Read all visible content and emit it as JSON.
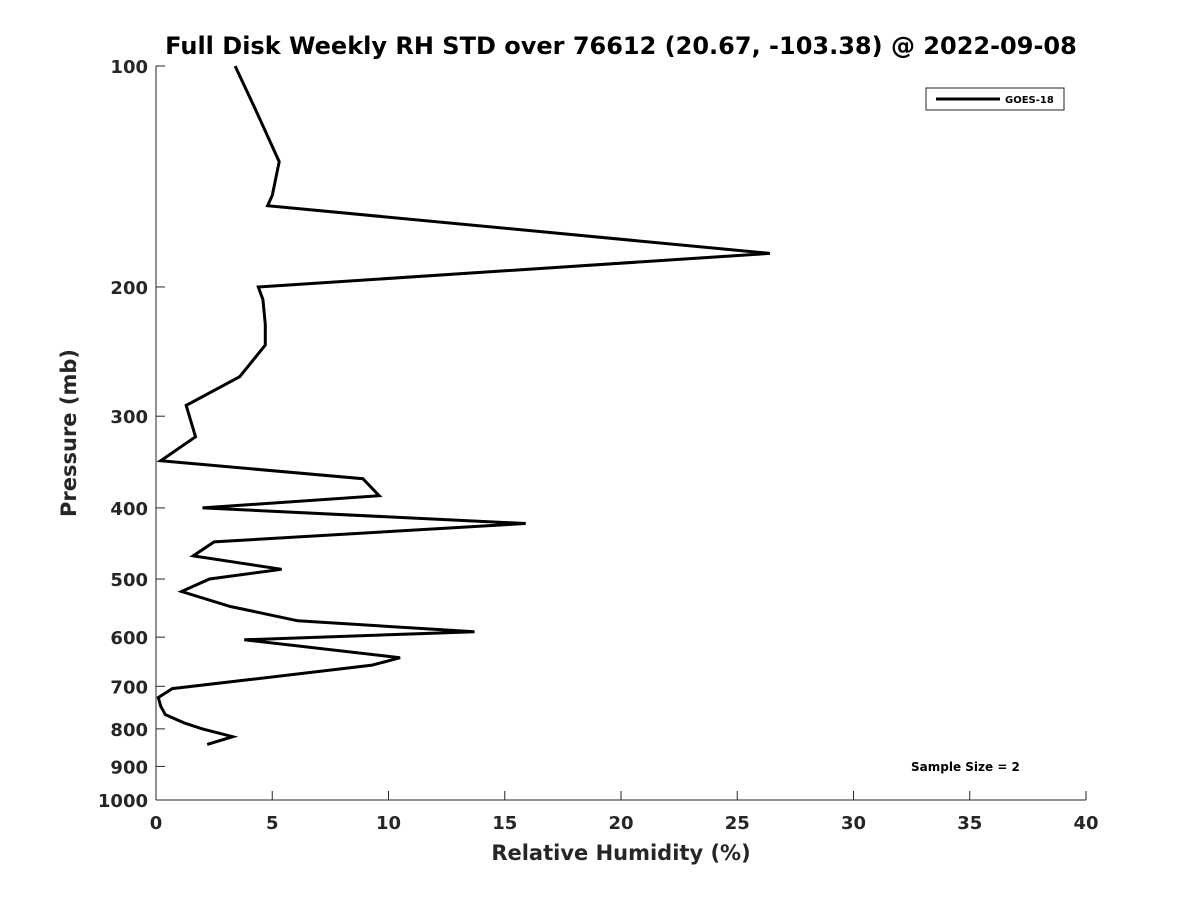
{
  "chart_data": {
    "type": "line",
    "title": "Full Disk Weekly RH STD over 76612 (20.67, -103.38) @ 2022-09-08",
    "xlabel": "Relative Humidity (%)",
    "ylabel": "Pressure (mb)",
    "xlim": [
      0,
      40
    ],
    "ylim": [
      100,
      1000
    ],
    "y_scale": "log",
    "y_reversed": true,
    "grid": false,
    "legend_position": "top-right",
    "x_ticks": [
      "0",
      "5",
      "10",
      "15",
      "20",
      "25",
      "30",
      "35",
      "40"
    ],
    "y_ticks": [
      "100",
      "200",
      "300",
      "400",
      "500",
      "600",
      "700",
      "800",
      "900",
      "1000"
    ],
    "annotation": "Sample Size = 2",
    "series": [
      {
        "name": "GOES-18",
        "color": "#000000",
        "points": [
          {
            "x": 3.4,
            "p": 100
          },
          {
            "x": 4.3,
            "p": 115
          },
          {
            "x": 5.3,
            "p": 135
          },
          {
            "x": 5.0,
            "p": 150
          },
          {
            "x": 4.8,
            "p": 155
          },
          {
            "x": 26.4,
            "p": 180
          },
          {
            "x": 4.4,
            "p": 200
          },
          {
            "x": 4.6,
            "p": 208
          },
          {
            "x": 4.7,
            "p": 225
          },
          {
            "x": 4.7,
            "p": 240
          },
          {
            "x": 3.6,
            "p": 265
          },
          {
            "x": 1.3,
            "p": 290
          },
          {
            "x": 1.7,
            "p": 320
          },
          {
            "x": 0.2,
            "p": 345
          },
          {
            "x": 8.9,
            "p": 365
          },
          {
            "x": 9.6,
            "p": 385
          },
          {
            "x": 2.0,
            "p": 400
          },
          {
            "x": 15.9,
            "p": 420
          },
          {
            "x": 2.5,
            "p": 445
          },
          {
            "x": 1.6,
            "p": 465
          },
          {
            "x": 5.4,
            "p": 485
          },
          {
            "x": 2.3,
            "p": 500
          },
          {
            "x": 1.1,
            "p": 520
          },
          {
            "x": 3.2,
            "p": 545
          },
          {
            "x": 6.1,
            "p": 570
          },
          {
            "x": 13.7,
            "p": 590
          },
          {
            "x": 3.8,
            "p": 605
          },
          {
            "x": 10.5,
            "p": 640
          },
          {
            "x": 9.3,
            "p": 655
          },
          {
            "x": 4.1,
            "p": 685
          },
          {
            "x": 0.7,
            "p": 705
          },
          {
            "x": 0.1,
            "p": 725
          },
          {
            "x": 0.2,
            "p": 745
          },
          {
            "x": 0.4,
            "p": 765
          },
          {
            "x": 1.2,
            "p": 785
          },
          {
            "x": 2.0,
            "p": 800
          },
          {
            "x": 3.3,
            "p": 820
          },
          {
            "x": 2.2,
            "p": 840
          }
        ]
      }
    ]
  }
}
